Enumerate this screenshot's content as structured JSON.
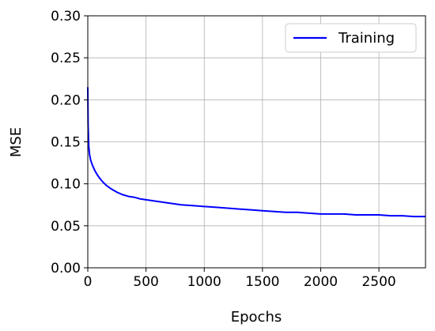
{
  "chart_data": {
    "type": "line",
    "xlabel": "Epochs",
    "ylabel": "MSE",
    "xlim": [
      0,
      2900
    ],
    "ylim": [
      0.0,
      0.3
    ],
    "xticks": [
      0,
      500,
      1000,
      1500,
      2000,
      2500
    ],
    "xtick_labels": [
      "0",
      "500",
      "1000",
      "1500",
      "2000",
      "2500"
    ],
    "yticks": [
      0.0,
      0.05,
      0.1,
      0.15,
      0.2,
      0.25,
      0.3
    ],
    "ytick_labels": [
      "0.00",
      "0.05",
      "0.10",
      "0.15",
      "0.20",
      "0.25",
      "0.30"
    ],
    "grid": true,
    "legend_position": "top-right",
    "series": [
      {
        "name": "Training",
        "color": "#0000ff",
        "x": [
          0,
          3,
          8,
          15,
          25,
          40,
          60,
          80,
          100,
          130,
          160,
          200,
          250,
          300,
          350,
          400,
          450,
          500,
          600,
          700,
          800,
          900,
          1000,
          1100,
          1200,
          1300,
          1400,
          1500,
          1600,
          1700,
          1800,
          1900,
          2000,
          2100,
          2200,
          2300,
          2400,
          2500,
          2600,
          2700,
          2800,
          2900
        ],
        "y": [
          0.215,
          0.17,
          0.145,
          0.135,
          0.128,
          0.122,
          0.116,
          0.111,
          0.107,
          0.102,
          0.098,
          0.094,
          0.09,
          0.087,
          0.085,
          0.084,
          0.082,
          0.081,
          0.079,
          0.077,
          0.075,
          0.074,
          0.073,
          0.072,
          0.071,
          0.07,
          0.069,
          0.068,
          0.067,
          0.066,
          0.066,
          0.065,
          0.064,
          0.064,
          0.064,
          0.063,
          0.063,
          0.063,
          0.062,
          0.062,
          0.061,
          0.061
        ]
      }
    ]
  }
}
